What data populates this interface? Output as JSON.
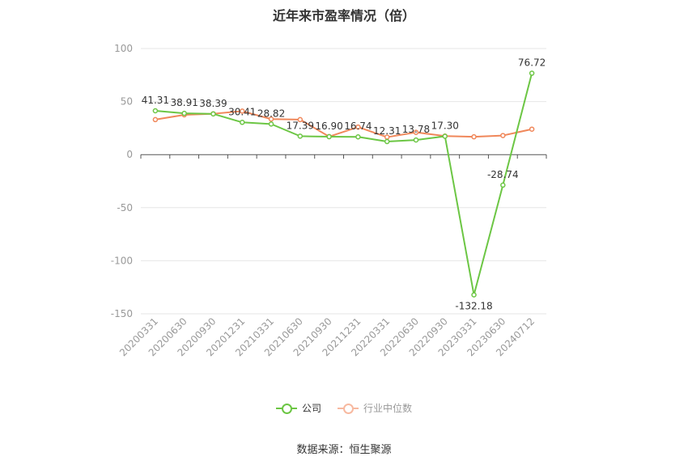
{
  "chart_data": {
    "type": "line",
    "title": "近年来市盈率情况（倍）",
    "categories": [
      "20200331",
      "20200630",
      "20200930",
      "20201231",
      "20210331",
      "20210630",
      "20210930",
      "20211231",
      "20220331",
      "20220630",
      "20220930",
      "20230331",
      "20230630",
      "20240712"
    ],
    "series": [
      {
        "name": "公司",
        "color": "#6cc644",
        "values": [
          41.31,
          38.91,
          38.39,
          30.41,
          28.82,
          17.39,
          16.9,
          16.74,
          12.31,
          13.78,
          17.3,
          -132.18,
          -28.74,
          76.72
        ],
        "labels": [
          "41.31",
          "38.91",
          "38.39",
          "30.41",
          "28.82",
          "17.39",
          "16.90",
          "16.74",
          "12.31",
          "13.78",
          "17.30",
          "-132.18",
          "-28.74",
          "76.72"
        ]
      },
      {
        "name": "行业中位数",
        "color": "#f0875a",
        "values": [
          33,
          37.5,
          38.5,
          41,
          33.5,
          33,
          17,
          26,
          16.5,
          21,
          17.5,
          16.8,
          18,
          24
        ]
      }
    ],
    "ylim": [
      -150,
      100
    ],
    "yticks": [
      "100",
      "50",
      "0",
      "-50",
      "-100",
      "-150"
    ],
    "xlabel": "",
    "ylabel": "",
    "grid": true,
    "legend_position": "bottom"
  },
  "source": "数据来源：恒生聚源"
}
